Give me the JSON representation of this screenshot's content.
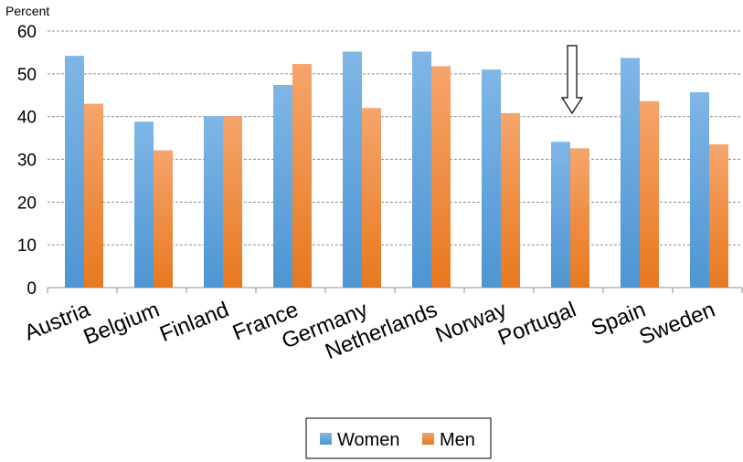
{
  "chart_data": {
    "type": "bar",
    "ylabel": "Percent",
    "ylim": [
      0,
      60
    ],
    "yticks": [
      0,
      10,
      20,
      30,
      40,
      50,
      60
    ],
    "grid": true,
    "legend_position": "bottom",
    "categories": [
      "Austria",
      "Belgium",
      "Finland",
      "France",
      "Germany",
      "Netherlands",
      "Norway",
      "Portugal",
      "Spain",
      "Sweden"
    ],
    "series": [
      {
        "name": "Women",
        "color": "#5b9bd5",
        "values": [
          54.2,
          38.8,
          40.1,
          47.4,
          55.2,
          55.2,
          51.0,
          34.1,
          53.7,
          45.7
        ]
      },
      {
        "name": "Men",
        "color": "#ed7d31",
        "values": [
          43.0,
          32.1,
          40.1,
          52.3,
          42.0,
          51.8,
          40.8,
          32.6,
          43.6,
          33.5
        ]
      }
    ],
    "annotation": {
      "type": "arrow-down",
      "category": "Portugal",
      "icon": "hollow-down-arrow-icon"
    }
  }
}
